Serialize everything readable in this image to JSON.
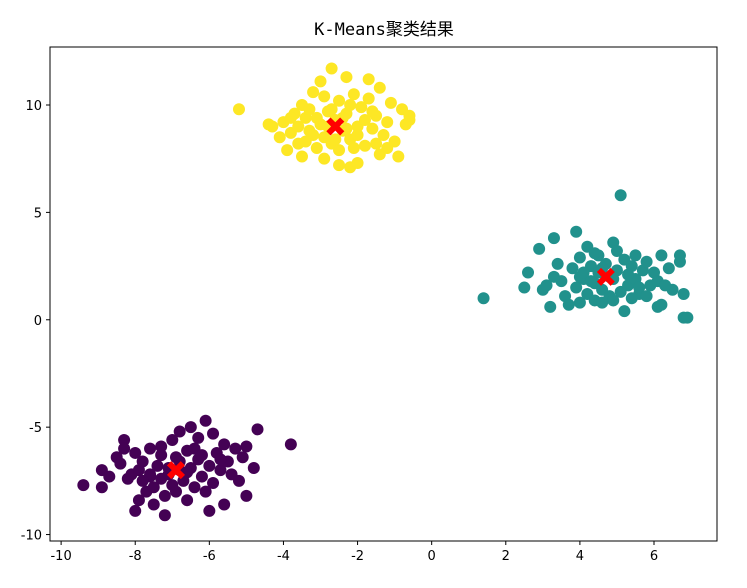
{
  "chart_data": {
    "type": "scatter",
    "title": "K-Means聚类结果",
    "xlabel": "",
    "ylabel": "",
    "xlim": [
      -10.3,
      7.7
    ],
    "ylim": [
      -10.3,
      12.7
    ],
    "xticks": [
      -10,
      -8,
      -6,
      -4,
      -2,
      0,
      2,
      4,
      6
    ],
    "yticks": [
      -10,
      -5,
      0,
      5,
      10
    ],
    "grid": false,
    "legend": "none",
    "series": [
      {
        "cluster": 0,
        "color": "#440154",
        "points": [
          [
            -9.4,
            -7.7
          ],
          [
            -8.9,
            -7.8
          ],
          [
            -8.9,
            -7.0
          ],
          [
            -8.7,
            -7.3
          ],
          [
            -8.5,
            -6.4
          ],
          [
            -8.4,
            -6.7
          ],
          [
            -8.3,
            -5.6
          ],
          [
            -8.3,
            -6.0
          ],
          [
            -8.2,
            -7.4
          ],
          [
            -8.1,
            -7.2
          ],
          [
            -8.0,
            -6.2
          ],
          [
            -7.9,
            -7.0
          ],
          [
            -7.9,
            -8.4
          ],
          [
            -7.8,
            -6.6
          ],
          [
            -7.7,
            -8.0
          ],
          [
            -7.6,
            -7.2
          ],
          [
            -7.6,
            -6.0
          ],
          [
            -7.5,
            -7.8
          ],
          [
            -7.5,
            -8.6
          ],
          [
            -7.4,
            -6.8
          ],
          [
            -7.3,
            -7.4
          ],
          [
            -7.3,
            -6.3
          ],
          [
            -7.2,
            -8.2
          ],
          [
            -7.1,
            -6.9
          ],
          [
            -7.0,
            -5.6
          ],
          [
            -7.0,
            -7.7
          ],
          [
            -6.9,
            -6.4
          ],
          [
            -6.9,
            -8.0
          ],
          [
            -6.8,
            -7.0
          ],
          [
            -6.8,
            -5.2
          ],
          [
            -6.7,
            -7.5
          ],
          [
            -6.6,
            -6.1
          ],
          [
            -6.6,
            -8.4
          ],
          [
            -6.5,
            -5.0
          ],
          [
            -6.5,
            -6.9
          ],
          [
            -6.4,
            -7.8
          ],
          [
            -6.3,
            -6.5
          ],
          [
            -6.3,
            -5.5
          ],
          [
            -6.2,
            -7.3
          ],
          [
            -6.1,
            -8.0
          ],
          [
            -6.1,
            -4.7
          ],
          [
            -6.0,
            -6.8
          ],
          [
            -5.9,
            -5.3
          ],
          [
            -5.9,
            -7.6
          ],
          [
            -5.8,
            -6.2
          ],
          [
            -5.7,
            -7.0
          ],
          [
            -5.6,
            -8.6
          ],
          [
            -5.6,
            -5.8
          ],
          [
            -5.5,
            -6.6
          ],
          [
            -5.4,
            -7.2
          ],
          [
            -5.3,
            -6.0
          ],
          [
            -5.2,
            -7.5
          ],
          [
            -5.1,
            -6.4
          ],
          [
            -5.0,
            -8.2
          ],
          [
            -5.0,
            -5.9
          ],
          [
            -4.8,
            -6.9
          ],
          [
            -4.7,
            -5.1
          ],
          [
            -3.8,
            -5.8
          ],
          [
            -6.0,
            -8.9
          ],
          [
            -7.2,
            -9.1
          ],
          [
            -8.0,
            -8.9
          ],
          [
            -7.6,
            -7.3
          ],
          [
            -6.4,
            -6.0
          ],
          [
            -6.8,
            -6.6
          ],
          [
            -7.1,
            -7.2
          ],
          [
            -6.6,
            -7.1
          ],
          [
            -7.3,
            -5.9
          ],
          [
            -6.2,
            -6.3
          ],
          [
            -5.7,
            -6.5
          ],
          [
            -7.8,
            -7.5
          ]
        ]
      },
      {
        "cluster": 1,
        "color": "#21918c",
        "points": [
          [
            1.4,
            1.0
          ],
          [
            2.5,
            1.5
          ],
          [
            2.6,
            2.2
          ],
          [
            2.9,
            3.3
          ],
          [
            3.0,
            1.4
          ],
          [
            3.1,
            1.6
          ],
          [
            3.2,
            0.6
          ],
          [
            3.3,
            3.8
          ],
          [
            3.4,
            2.6
          ],
          [
            3.5,
            1.8
          ],
          [
            3.6,
            1.1
          ],
          [
            3.7,
            0.7
          ],
          [
            3.8,
            2.4
          ],
          [
            3.9,
            4.1
          ],
          [
            3.9,
            1.5
          ],
          [
            4.0,
            2.9
          ],
          [
            4.0,
            0.8
          ],
          [
            4.1,
            1.9
          ],
          [
            4.2,
            3.4
          ],
          [
            4.2,
            1.2
          ],
          [
            4.3,
            2.5
          ],
          [
            4.4,
            0.9
          ],
          [
            4.4,
            1.7
          ],
          [
            4.5,
            2.2
          ],
          [
            4.5,
            3.0
          ],
          [
            4.6,
            1.4
          ],
          [
            4.6,
            0.8
          ],
          [
            4.7,
            2.6
          ],
          [
            4.8,
            1.1
          ],
          [
            4.9,
            3.6
          ],
          [
            4.9,
            1.9
          ],
          [
            5.0,
            2.3
          ],
          [
            5.0,
            3.2
          ],
          [
            5.1,
            5.8
          ],
          [
            5.1,
            1.3
          ],
          [
            5.2,
            2.8
          ],
          [
            5.2,
            0.4
          ],
          [
            5.3,
            1.6
          ],
          [
            5.4,
            2.5
          ],
          [
            5.5,
            3.0
          ],
          [
            5.5,
            1.9
          ],
          [
            5.6,
            1.2
          ],
          [
            5.7,
            2.3
          ],
          [
            5.8,
            2.7
          ],
          [
            5.9,
            1.6
          ],
          [
            6.0,
            2.2
          ],
          [
            6.1,
            0.6
          ],
          [
            6.1,
            1.8
          ],
          [
            6.2,
            3.0
          ],
          [
            6.2,
            0.7
          ],
          [
            6.4,
            2.4
          ],
          [
            6.5,
            1.4
          ],
          [
            6.7,
            2.7
          ],
          [
            6.7,
            3.0
          ],
          [
            6.8,
            1.2
          ],
          [
            6.8,
            0.1
          ],
          [
            6.9,
            0.1
          ],
          [
            4.0,
            2.0
          ],
          [
            4.3,
            1.8
          ],
          [
            4.8,
            2.0
          ],
          [
            5.3,
            2.1
          ],
          [
            4.6,
            2.4
          ],
          [
            4.1,
            2.2
          ],
          [
            5.6,
            1.5
          ],
          [
            3.3,
            2.0
          ],
          [
            4.9,
            0.9
          ],
          [
            5.8,
            1.1
          ],
          [
            6.3,
            1.6
          ],
          [
            5.4,
            1.0
          ],
          [
            4.4,
            3.1
          ]
        ]
      },
      {
        "cluster": 2,
        "color": "#fde725",
        "points": [
          [
            -5.2,
            9.8
          ],
          [
            -4.3,
            9.0
          ],
          [
            -4.1,
            8.5
          ],
          [
            -4.0,
            9.2
          ],
          [
            -3.9,
            7.9
          ],
          [
            -3.8,
            8.7
          ],
          [
            -3.7,
            9.6
          ],
          [
            -3.6,
            8.2
          ],
          [
            -3.5,
            10.0
          ],
          [
            -3.5,
            7.6
          ],
          [
            -3.4,
            9.4
          ],
          [
            -3.3,
            8.8
          ],
          [
            -3.2,
            10.6
          ],
          [
            -3.1,
            8.0
          ],
          [
            -3.0,
            9.1
          ],
          [
            -3.0,
            11.1
          ],
          [
            -2.9,
            8.5
          ],
          [
            -2.9,
            7.5
          ],
          [
            -2.8,
            9.7
          ],
          [
            -2.7,
            8.2
          ],
          [
            -2.7,
            11.7
          ],
          [
            -2.6,
            9.3
          ],
          [
            -2.5,
            10.2
          ],
          [
            -2.5,
            7.9
          ],
          [
            -2.4,
            8.8
          ],
          [
            -2.3,
            11.3
          ],
          [
            -2.3,
            9.6
          ],
          [
            -2.2,
            7.1
          ],
          [
            -2.2,
            8.4
          ],
          [
            -2.1,
            10.5
          ],
          [
            -2.0,
            9.0
          ],
          [
            -2.0,
            7.3
          ],
          [
            -1.9,
            9.9
          ],
          [
            -1.8,
            8.1
          ],
          [
            -1.7,
            10.3
          ],
          [
            -1.7,
            11.2
          ],
          [
            -1.6,
            8.9
          ],
          [
            -1.5,
            9.5
          ],
          [
            -1.4,
            7.7
          ],
          [
            -1.4,
            10.8
          ],
          [
            -1.3,
            8.6
          ],
          [
            -1.2,
            9.2
          ],
          [
            -1.1,
            10.1
          ],
          [
            -1.0,
            8.3
          ],
          [
            -0.9,
            7.6
          ],
          [
            -0.8,
            9.8
          ],
          [
            -0.7,
            9.1
          ],
          [
            -0.6,
            9.5
          ],
          [
            -0.6,
            9.3
          ],
          [
            -3.6,
            9.0
          ],
          [
            -3.2,
            8.6
          ],
          [
            -2.8,
            9.0
          ],
          [
            -2.4,
            9.4
          ],
          [
            -2.0,
            8.6
          ],
          [
            -1.8,
            9.3
          ],
          [
            -3.3,
            9.8
          ],
          [
            -2.6,
            8.4
          ],
          [
            -2.2,
            10.0
          ],
          [
            -1.5,
            8.2
          ],
          [
            -2.9,
            10.4
          ],
          [
            -3.8,
            9.4
          ],
          [
            -1.2,
            8.0
          ],
          [
            -2.5,
            7.2
          ],
          [
            -3.1,
            9.4
          ],
          [
            -2.1,
            8.0
          ],
          [
            -4.4,
            9.1
          ],
          [
            -1.6,
            9.7
          ],
          [
            -2.7,
            9.8
          ],
          [
            -2.3,
            8.9
          ],
          [
            -3.4,
            8.3
          ]
        ]
      }
    ],
    "centroids": {
      "color": "#ff0000",
      "marker": "X",
      "points": [
        [
          -6.9,
          -7.0
        ],
        [
          4.7,
          2.0
        ],
        [
          -2.6,
          9.0
        ]
      ]
    }
  }
}
